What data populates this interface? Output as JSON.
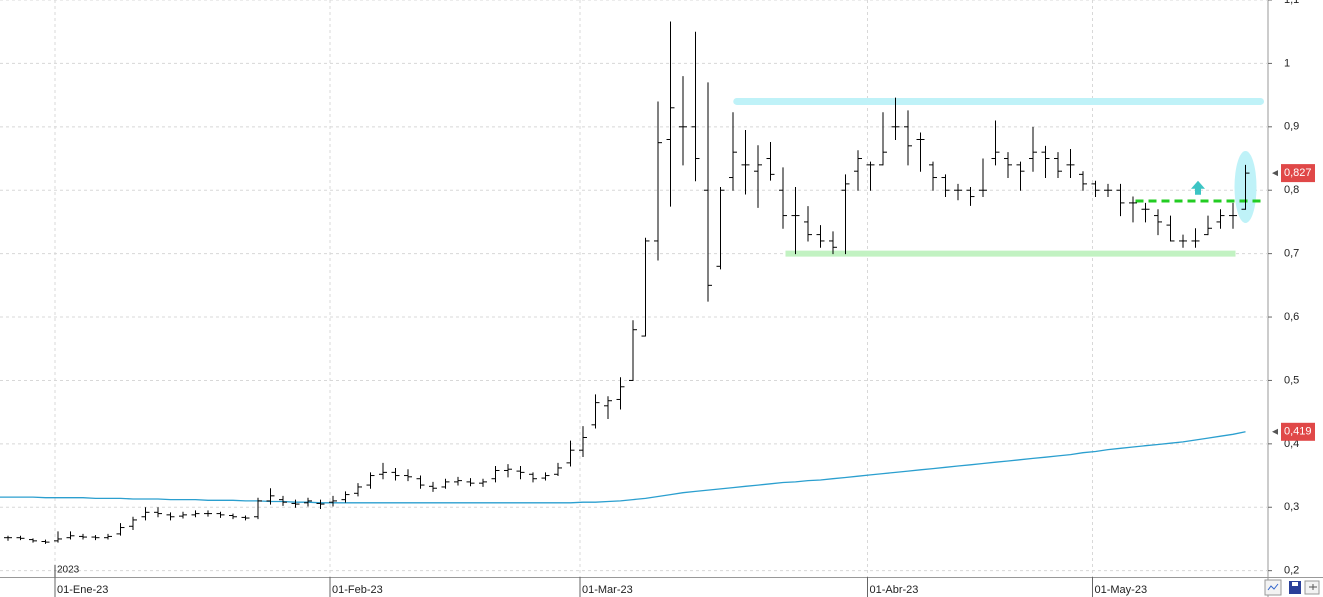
{
  "chart_data": {
    "type": "ohlc",
    "categories": [
      null,
      null,
      null,
      null,
      "01-Ene-23",
      null,
      null,
      null,
      null,
      null,
      null,
      null,
      null,
      null,
      null,
      null,
      null,
      null,
      null,
      null,
      null,
      null,
      null,
      null,
      null,
      null,
      "01-Feb-23",
      null,
      null,
      null,
      null,
      null,
      null,
      null,
      null,
      null,
      null,
      null,
      null,
      null,
      null,
      null,
      null,
      null,
      null,
      null,
      "01-Mar-23",
      null,
      null,
      null,
      null,
      null,
      null,
      null,
      null,
      null,
      null,
      null,
      null,
      null,
      null,
      null,
      null,
      null,
      null,
      null,
      null,
      null,
      null,
      "01-Abr-23",
      null,
      null,
      null,
      null,
      null,
      null,
      null,
      null,
      null,
      null,
      null,
      null,
      null,
      null,
      null,
      null,
      null,
      "01-May-23",
      null,
      null,
      null,
      null,
      null,
      null,
      null,
      null,
      null,
      null,
      null,
      null
    ],
    "year_label": "2023",
    "bar_color": "#000000",
    "open": [
      0.252,
      0.252,
      0.249,
      0.246,
      0.247,
      0.252,
      0.254,
      0.253,
      0.252,
      0.258,
      0.27,
      0.285,
      0.292,
      0.288,
      0.286,
      0.288,
      0.29,
      0.29,
      0.287,
      0.284,
      0.285,
      0.31,
      0.312,
      0.306,
      0.307,
      0.306,
      0.308,
      0.312,
      0.322,
      0.335,
      0.352,
      0.355,
      0.35,
      0.345,
      0.333,
      0.332,
      0.34,
      0.34,
      0.338,
      0.345,
      0.358,
      0.357,
      0.352,
      0.346,
      0.352,
      0.37,
      0.39,
      0.43,
      0.46,
      0.47,
      0.5,
      0.57,
      0.72,
      0.88,
      0.9,
      0.9,
      0.8,
      0.68,
      0.82,
      0.84,
      0.83,
      0.85,
      0.8,
      0.76,
      0.75,
      0.73,
      0.72,
      0.8,
      0.83,
      0.84,
      0.84,
      0.9,
      0.9,
      0.88,
      0.84,
      0.82,
      0.8,
      0.8,
      0.8,
      0.85,
      0.85,
      0.84,
      0.85,
      0.86,
      0.85,
      0.84,
      0.825,
      0.81,
      0.8,
      0.8,
      0.78,
      0.77,
      0.76,
      0.745,
      0.72,
      0.72,
      0.73,
      0.75,
      0.76,
      0.77
    ],
    "high": [
      0.255,
      0.255,
      0.251,
      0.249,
      0.262,
      0.262,
      0.258,
      0.256,
      0.258,
      0.275,
      0.285,
      0.3,
      0.3,
      0.292,
      0.293,
      0.295,
      0.295,
      0.293,
      0.29,
      0.287,
      0.315,
      0.33,
      0.318,
      0.312,
      0.315,
      0.312,
      0.318,
      0.325,
      0.338,
      0.355,
      0.37,
      0.362,
      0.36,
      0.35,
      0.34,
      0.345,
      0.348,
      0.346,
      0.345,
      0.365,
      0.368,
      0.365,
      0.355,
      0.355,
      0.37,
      0.405,
      0.428,
      0.478,
      0.475,
      0.505,
      0.595,
      0.725,
      0.94,
      1.066,
      0.98,
      1.05,
      0.97,
      0.805,
      0.923,
      0.895,
      0.871,
      0.876,
      0.836,
      0.805,
      0.775,
      0.745,
      0.735,
      0.825,
      0.863,
      0.845,
      0.923,
      0.946,
      0.926,
      0.891,
      0.845,
      0.825,
      0.81,
      0.805,
      0.85,
      0.91,
      0.86,
      0.845,
      0.9,
      0.87,
      0.86,
      0.865,
      0.83,
      0.815,
      0.81,
      0.81,
      0.79,
      0.78,
      0.77,
      0.76,
      0.73,
      0.74,
      0.76,
      0.77,
      0.78,
      0.84
    ],
    "low": [
      0.248,
      0.249,
      0.245,
      0.243,
      0.245,
      0.25,
      0.25,
      0.249,
      0.25,
      0.256,
      0.265,
      0.28,
      0.285,
      0.28,
      0.283,
      0.285,
      0.286,
      0.284,
      0.282,
      0.28,
      0.282,
      0.305,
      0.303,
      0.3,
      0.302,
      0.298,
      0.302,
      0.308,
      0.318,
      0.33,
      0.345,
      0.343,
      0.342,
      0.33,
      0.325,
      0.33,
      0.335,
      0.334,
      0.333,
      0.34,
      0.348,
      0.345,
      0.34,
      0.343,
      0.35,
      0.365,
      0.38,
      0.425,
      0.44,
      0.455,
      0.5,
      0.57,
      0.69,
      0.775,
      0.84,
      0.815,
      0.625,
      0.676,
      0.8,
      0.794,
      0.773,
      0.816,
      0.74,
      0.7,
      0.72,
      0.71,
      0.7,
      0.7,
      0.8,
      0.8,
      0.84,
      0.88,
      0.84,
      0.83,
      0.8,
      0.79,
      0.785,
      0.776,
      0.79,
      0.84,
      0.82,
      0.8,
      0.83,
      0.82,
      0.82,
      0.82,
      0.8,
      0.79,
      0.79,
      0.76,
      0.75,
      0.75,
      0.73,
      0.72,
      0.71,
      0.71,
      0.73,
      0.74,
      0.74,
      0.77
    ],
    "close": [
      0.252,
      0.251,
      0.247,
      0.245,
      0.25,
      0.255,
      0.253,
      0.252,
      0.254,
      0.268,
      0.28,
      0.292,
      0.29,
      0.285,
      0.288,
      0.29,
      0.29,
      0.288,
      0.285,
      0.283,
      0.31,
      0.318,
      0.308,
      0.305,
      0.31,
      0.305,
      0.31,
      0.32,
      0.332,
      0.35,
      0.355,
      0.35,
      0.348,
      0.335,
      0.33,
      0.34,
      0.342,
      0.338,
      0.34,
      0.358,
      0.36,
      0.355,
      0.345,
      0.35,
      0.362,
      0.39,
      0.41,
      0.465,
      0.468,
      0.49,
      0.58,
      0.72,
      0.875,
      0.93,
      0.9,
      0.85,
      0.65,
      0.8,
      0.86,
      0.84,
      0.84,
      0.825,
      0.76,
      0.76,
      0.73,
      0.72,
      0.71,
      0.81,
      0.85,
      0.84,
      0.86,
      0.9,
      0.87,
      0.88,
      0.82,
      0.8,
      0.8,
      0.79,
      0.8,
      0.86,
      0.84,
      0.83,
      0.86,
      0.85,
      0.83,
      0.84,
      0.81,
      0.8,
      0.8,
      0.78,
      0.78,
      0.77,
      0.75,
      0.72,
      0.72,
      0.72,
      0.74,
      0.76,
      0.76,
      0.827
    ],
    "ma": {
      "color": "#2b9fcf",
      "values": [
        0.316,
        0.316,
        0.316,
        0.315,
        0.315,
        0.315,
        0.315,
        0.314,
        0.314,
        0.314,
        0.313,
        0.313,
        0.313,
        0.312,
        0.312,
        0.312,
        0.311,
        0.311,
        0.311,
        0.31,
        0.31,
        0.309,
        0.309,
        0.308,
        0.308,
        0.307,
        0.307,
        0.307,
        0.307,
        0.307,
        0.307,
        0.307,
        0.307,
        0.307,
        0.307,
        0.307,
        0.307,
        0.307,
        0.307,
        0.307,
        0.307,
        0.307,
        0.307,
        0.307,
        0.307,
        0.307,
        0.308,
        0.308,
        0.309,
        0.31,
        0.312,
        0.314,
        0.317,
        0.32,
        0.323,
        0.325,
        0.327,
        0.329,
        0.331,
        0.333,
        0.335,
        0.337,
        0.339,
        0.34,
        0.342,
        0.343,
        0.345,
        0.347,
        0.349,
        0.351,
        0.353,
        0.355,
        0.357,
        0.359,
        0.361,
        0.363,
        0.365,
        0.367,
        0.369,
        0.371,
        0.373,
        0.375,
        0.377,
        0.379,
        0.381,
        0.383,
        0.386,
        0.388,
        0.391,
        0.393,
        0.395,
        0.397,
        0.399,
        0.401,
        0.403,
        0.406,
        0.409,
        0.412,
        0.415,
        0.419
      ]
    },
    "ylim": [
      0.19,
      1.1
    ],
    "yticks": [
      {
        "value": 0.2,
        "label": "0,2"
      },
      {
        "value": 0.3,
        "label": "0,3"
      },
      {
        "value": 0.4,
        "label": "0,4"
      },
      {
        "value": 0.5,
        "label": "0,5"
      },
      {
        "value": 0.6,
        "label": "0,6"
      },
      {
        "value": 0.7,
        "label": "0,7"
      },
      {
        "value": 0.8,
        "label": "0,8"
      },
      {
        "value": 0.9,
        "label": "0,9"
      },
      {
        "value": 1,
        "label": "1"
      },
      {
        "value": 1.1,
        "label": "1,1"
      }
    ],
    "grid": true,
    "levels": [
      {
        "value": 0.94,
        "color": "#bff2f8"
      },
      {
        "value": 0.7,
        "color": "#c2f2c2"
      },
      {
        "value": 0.783,
        "color": "#22cc22"
      }
    ],
    "price_tags": [
      {
        "value": 0.827,
        "label": "0,827",
        "color": "#e04848"
      },
      {
        "value": 0.419,
        "label": "0,419",
        "color": "#e04848"
      }
    ]
  }
}
